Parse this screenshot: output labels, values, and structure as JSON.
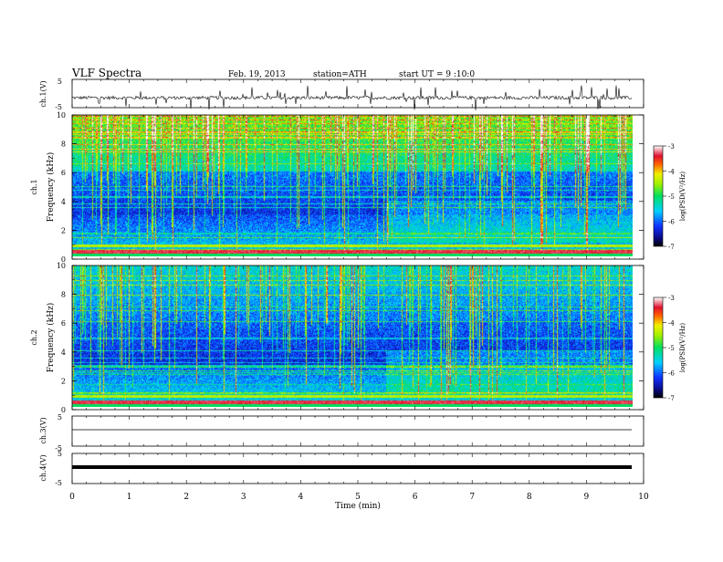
{
  "header": {
    "title": "VLF Spectra",
    "date": "Feb. 19, 2013",
    "station": "station=ATH",
    "start": "start UT = 9 :10:0"
  },
  "colorbar": {
    "label": "log(PSD(V²/Hz)",
    "ticks": [
      "-3",
      "-4",
      "-5",
      "-6",
      "-7"
    ]
  },
  "chart_data": [
    {
      "type": "line",
      "id": "ch1-waveform",
      "ylabel": "ch.1(V)",
      "ylim": [
        -5,
        5
      ],
      "yticks": [
        "5",
        "-5"
      ],
      "x_range": [
        0,
        9.8
      ],
      "baseline": -1.5
    },
    {
      "type": "heatmap",
      "id": "ch1-spectrogram",
      "ylabel_channel": "ch.1",
      "ylabel": "Frequency (kHz)",
      "ylim": [
        0,
        10
      ],
      "yticks": [
        "0",
        "2",
        "4",
        "6",
        "8",
        "10"
      ],
      "x_range": [
        0,
        9.8
      ],
      "color_range": [
        -7,
        -3
      ]
    },
    {
      "type": "heatmap",
      "id": "ch2-spectrogram",
      "ylabel_channel": "ch.2",
      "ylabel": "Frequency (kHz)",
      "ylim": [
        0,
        10
      ],
      "yticks": [
        "0",
        "2",
        "4",
        "6",
        "8",
        "10"
      ],
      "x_range": [
        0,
        9.8
      ],
      "color_range": [
        -7,
        -3
      ]
    },
    {
      "type": "line",
      "id": "ch3-waveform",
      "ylabel": "ch.3(V)",
      "ylim": [
        -5,
        5
      ],
      "yticks": [
        "5",
        "-5"
      ],
      "x_range": [
        0,
        9.8
      ],
      "baseline": 0
    },
    {
      "type": "line",
      "id": "ch4-waveform",
      "ylabel": "ch.4(V)",
      "ylim": [
        -5,
        5
      ],
      "yticks": [
        "5",
        "-5"
      ],
      "x_range": [
        0,
        9.8
      ],
      "baseline": 0
    }
  ],
  "xaxis": {
    "label": "Time (min)",
    "ticks": [
      "0",
      "1",
      "2",
      "3",
      "4",
      "5",
      "6",
      "7",
      "8",
      "9",
      "10"
    ],
    "range": [
      0,
      10
    ]
  }
}
